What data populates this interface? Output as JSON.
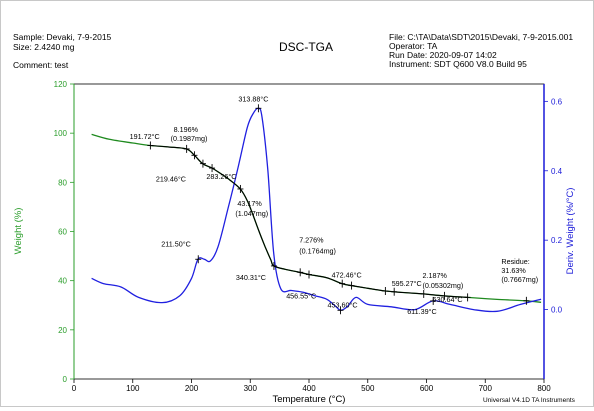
{
  "header": {
    "sample": "Sample: Devaki, 7-9-2015",
    "size": "Size:  2.4240 mg",
    "comment": "Comment: test",
    "title": "DSC-TGA",
    "file": "File: C:\\TA\\Data\\SDT\\2015\\Devaki, 7-9-2015.001",
    "operator": "Operator: TA",
    "run_date": "Run Date: 2020-09-07 14:02",
    "instrument": "Instrument: SDT Q600 V8.0 Build 95"
  },
  "footer": "Universal V4.1D TA Instruments",
  "colors": {
    "weight": "#1f8a1f",
    "deriv": "#2020e0",
    "marker": "#000000",
    "axis_left": "#2a9d2a",
    "axis_right": "#1a1ad8"
  },
  "chart_data": {
    "type": "line",
    "title": "DSC-TGA",
    "xlabel": "Temperature (°C)",
    "ylabel": "Weight (%)",
    "y2label": "Deriv. Weight (%/°C)",
    "xlim": [
      0,
      800
    ],
    "ylim": [
      0,
      120
    ],
    "y2lim": [
      -0.2,
      0.65
    ],
    "x_ticks": [
      "0",
      "100",
      "200",
      "300",
      "400",
      "500",
      "600",
      "700",
      "800"
    ],
    "y_ticks": [
      "0",
      "20",
      "40",
      "60",
      "80",
      "100",
      "120"
    ],
    "y2_ticks": [
      "0.0",
      "0.2",
      "0.4",
      "0.6"
    ],
    "grid": false,
    "series": [
      {
        "name": "Weight (%)",
        "axis": "left",
        "x": [
          30,
          60,
          100,
          130,
          160,
          191,
          205,
          219,
          235,
          250,
          265,
          283,
          295,
          305,
          315,
          325,
          335,
          340,
          360,
          380,
          400,
          430,
          456,
          472,
          500,
          530,
          560,
          595,
          630,
          670,
          720,
          770,
          795
        ],
        "y": [
          99.5,
          97.5,
          96,
          95,
          94.4,
          93.6,
          91,
          87.6,
          85.8,
          83.5,
          81,
          77.3,
          72.5,
          66.5,
          60,
          54,
          48.5,
          46,
          44.6,
          43.6,
          42.5,
          41.2,
          38.8,
          38,
          36.9,
          35.8,
          35.2,
          34.6,
          33.8,
          33.2,
          32.4,
          31.8,
          31.2
        ]
      },
      {
        "name": "Deriv. Weight (%/°C)",
        "axis": "right",
        "x": [
          30,
          50,
          80,
          110,
          150,
          180,
          200,
          211,
          222,
          232,
          245,
          262,
          280,
          295,
          305,
          314,
          320,
          330,
          340,
          352,
          370,
          390,
          410,
          430,
          445,
          454,
          465,
          480,
          500,
          540,
          580,
          611,
          640,
          680,
          720,
          760,
          795
        ],
        "y": [
          0.09,
          0.075,
          0.065,
          0.035,
          0.02,
          0.04,
          0.09,
          0.145,
          0.145,
          0.14,
          0.18,
          0.29,
          0.415,
          0.525,
          0.565,
          0.58,
          0.555,
          0.4,
          0.16,
          0.06,
          0.055,
          0.05,
          0.04,
          0.03,
          0.01,
          -0.002,
          0.008,
          0.035,
          0.015,
          0.008,
          0.0,
          0.025,
          0.015,
          0.0,
          -0.005,
          0.015,
          0.03
        ]
      }
    ],
    "annotations": [
      {
        "text": "191.72°C",
        "x": 191.72,
        "y": 93.6,
        "axis": "left",
        "label_dx": -57,
        "label_dy": -10
      },
      {
        "text": "219.46°C",
        "x": 219.46,
        "y": 87.6,
        "axis": "left",
        "label_dx": -47,
        "label_dy": 18
      },
      {
        "text": "8.196%",
        "x": null,
        "y": null,
        "anchor": "191.72°C",
        "label_dx": -13,
        "label_dy": -17
      },
      {
        "text": "(0.1987mg)",
        "x": null,
        "y": null,
        "anchor": "191.72°C",
        "label_dx": -16,
        "label_dy": -8
      },
      {
        "text": "283.26°C",
        "x": 283.26,
        "y": 77.3,
        "axis": "left",
        "label_dx": -34,
        "label_dy": -10
      },
      {
        "text": "313.88°C",
        "x": 313.88,
        "y": 0.58,
        "axis": "right",
        "label_dx": -20,
        "label_dy": -7
      },
      {
        "text": "43.17%",
        "x": null,
        "y": null,
        "anchor": "283.26°C",
        "label_dx": -3,
        "label_dy": 17
      },
      {
        "text": "(1.047mg)",
        "x": null,
        "y": null,
        "anchor": "283.26°C",
        "label_dx": -5,
        "label_dy": 27
      },
      {
        "text": "211.50°C",
        "x": 211.5,
        "y": 0.145,
        "axis": "right",
        "label_dx": -37,
        "label_dy": -13
      },
      {
        "text": "340.31°C",
        "x": 340.31,
        "y": 46,
        "axis": "left",
        "label_dx": -38,
        "label_dy": 14
      },
      {
        "text": "7.276%",
        "x": null,
        "y": null,
        "anchor": "456.55°C",
        "label_dx": -43,
        "label_dy": -41
      },
      {
        "text": "(0.1764mg)",
        "x": null,
        "y": null,
        "anchor": "456.55°C",
        "label_dx": -43,
        "label_dy": -30
      },
      {
        "text": "456.55°C",
        "x": 456.55,
        "y": 38.8,
        "axis": "left",
        "label_dx": -56,
        "label_dy": 15
      },
      {
        "text": "472.46°C",
        "x": 472.46,
        "y": 38,
        "axis": "left",
        "label_dx": -20,
        "label_dy": -8
      },
      {
        "text": "453.60°C",
        "x": 453.6,
        "y": -0.002,
        "axis": "right",
        "label_dx": -13,
        "label_dy": -3
      },
      {
        "text": "595.27°C",
        "x": 595.27,
        "y": 34.6,
        "axis": "left",
        "label_dx": -32,
        "label_dy": -8
      },
      {
        "text": "2.187%",
        "x": null,
        "y": null,
        "anchor": "630.64°C",
        "label_dx": -22,
        "label_dy": -18
      },
      {
        "text": "(0.05302mg)",
        "x": null,
        "y": null,
        "anchor": "630.64°C",
        "label_dx": -22,
        "label_dy": -8
      },
      {
        "text": "630.64°C",
        "x": 630.64,
        "y": 33.8,
        "axis": "left",
        "label_dx": -12,
        "label_dy": 6
      },
      {
        "text": "611.39°C",
        "x": 611.39,
        "y": 0.025,
        "axis": "right",
        "label_dx": -26,
        "label_dy": 13
      },
      {
        "text": "Residue:",
        "x": 770,
        "y": 31.8,
        "axis": "left",
        "label_dx": -25,
        "label_dy": -37
      },
      {
        "text": "31.63%",
        "x": null,
        "y": null,
        "anchor": "Residue:",
        "label_dx": -25,
        "label_dy": -28
      },
      {
        "text": "(0.7667mg)",
        "x": null,
        "y": null,
        "anchor": "Residue:",
        "label_dx": -25,
        "label_dy": -19
      }
    ],
    "markers": [
      {
        "x": 130,
        "y": 95,
        "axis": "left"
      },
      {
        "x": 191.72,
        "y": 93.6,
        "axis": "left"
      },
      {
        "x": 205,
        "y": 91,
        "axis": "left"
      },
      {
        "x": 219.46,
        "y": 87.6,
        "axis": "left"
      },
      {
        "x": 235,
        "y": 85.8,
        "axis": "left"
      },
      {
        "x": 283.26,
        "y": 77.3,
        "axis": "left"
      },
      {
        "x": 313.88,
        "y": 0.58,
        "axis": "right"
      },
      {
        "x": 211.5,
        "y": 0.145,
        "axis": "right"
      },
      {
        "x": 340.31,
        "y": 46,
        "axis": "left"
      },
      {
        "x": 385,
        "y": 43.4,
        "axis": "left"
      },
      {
        "x": 400,
        "y": 42.5,
        "axis": "left"
      },
      {
        "x": 456.55,
        "y": 38.8,
        "axis": "left"
      },
      {
        "x": 472.46,
        "y": 38,
        "axis": "left"
      },
      {
        "x": 453.6,
        "y": -0.002,
        "axis": "right"
      },
      {
        "x": 530,
        "y": 35.8,
        "axis": "left"
      },
      {
        "x": 545,
        "y": 35.5,
        "axis": "left"
      },
      {
        "x": 595.27,
        "y": 34.6,
        "axis": "left"
      },
      {
        "x": 630.64,
        "y": 33.8,
        "axis": "left"
      },
      {
        "x": 611.39,
        "y": 0.025,
        "axis": "right"
      },
      {
        "x": 670,
        "y": 33.2,
        "axis": "left"
      },
      {
        "x": 770,
        "y": 31.8,
        "axis": "left"
      }
    ]
  }
}
